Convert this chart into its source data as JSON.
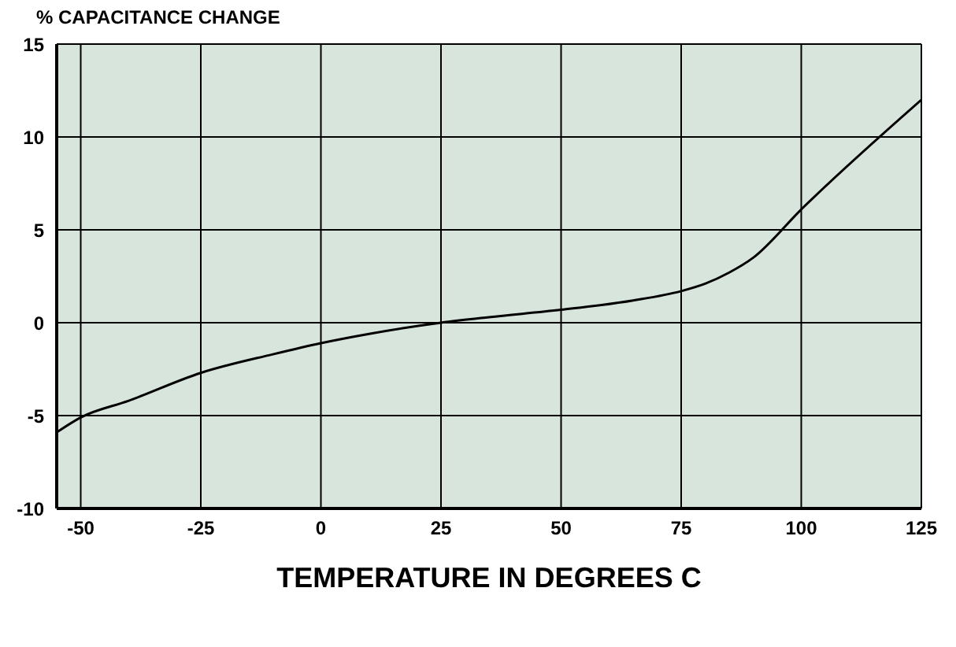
{
  "chart_data": {
    "type": "line",
    "ylabel": "% CAPACITANCE CHANGE",
    "xlabel": "TEMPERATURE IN DEGREES C",
    "series": [
      {
        "color": "#000000",
        "x": [
          -55,
          -50,
          -40,
          -25,
          -10,
          0,
          10,
          25,
          35,
          50,
          65,
          75,
          80,
          85,
          90,
          100,
          125
        ],
        "values": [
          -5.9,
          -5.1,
          -4.2,
          -2.7,
          -1.7,
          -1.1,
          -0.6,
          0,
          0.3,
          0.7,
          1.2,
          1.7,
          2.1,
          2.7,
          3.5,
          6.1,
          12
        ]
      }
    ],
    "xlim": [
      -55,
      125
    ],
    "xticks": [
      -50,
      -25,
      0,
      25,
      50,
      75,
      100,
      125
    ],
    "ylim": [
      -10,
      15
    ],
    "yticks": [
      -10,
      -5,
      0,
      5,
      10,
      15
    ],
    "grid": true,
    "legend": false,
    "marker": "none",
    "line_style": "solid"
  }
}
